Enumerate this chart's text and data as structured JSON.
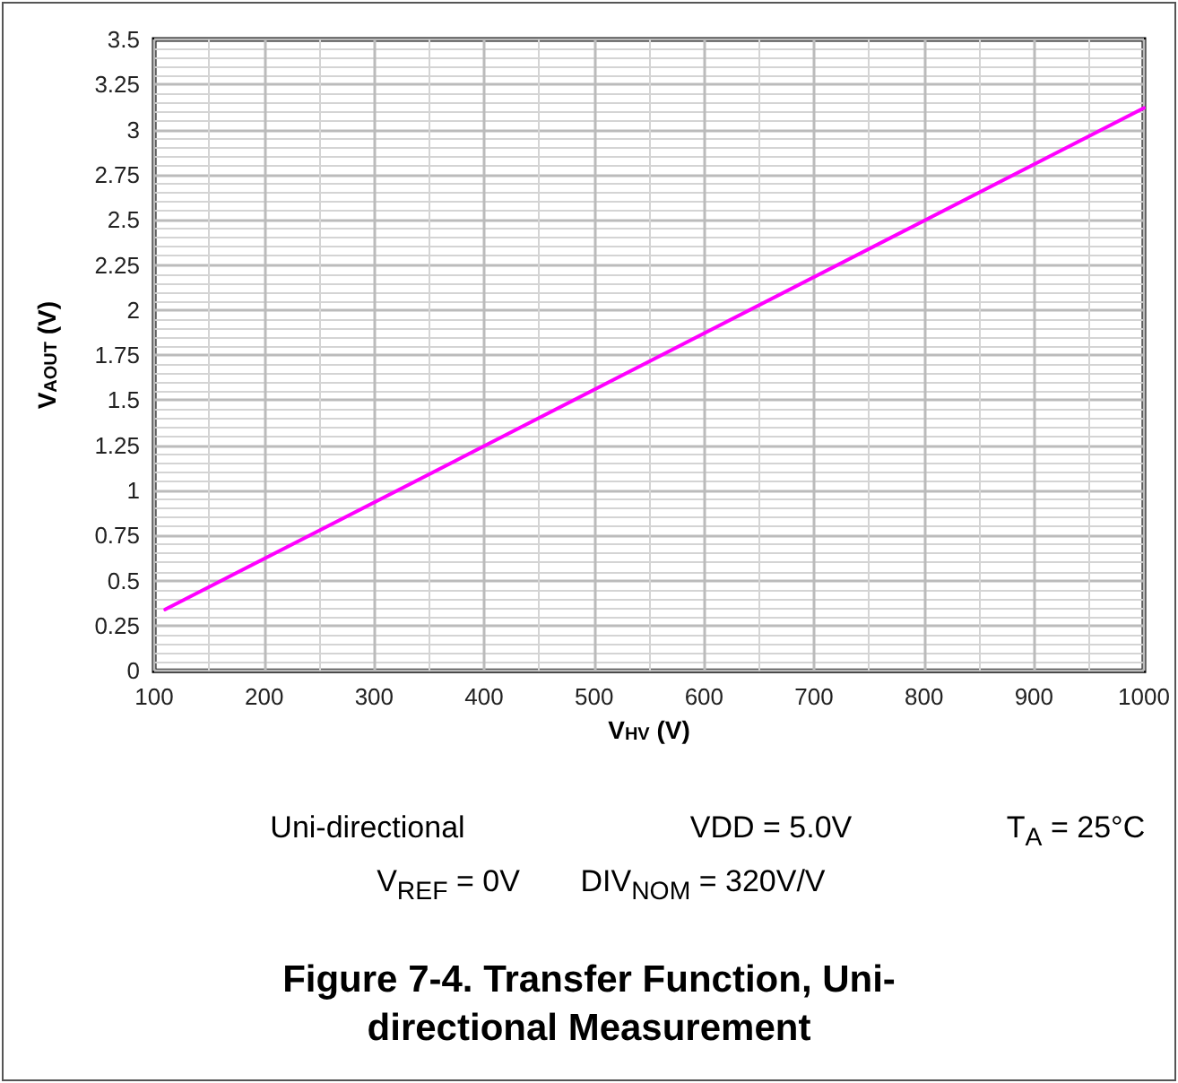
{
  "chart_data": {
    "type": "line",
    "title": "Figure 7-4. Transfer Function, Uni-directional Measurement",
    "xlabel": "V$_{HV}$ (V)",
    "ylabel": "V$_{AOUT}$ (V)",
    "x": [
      110,
      1000
    ],
    "series": [
      {
        "color": "#ff00ff",
        "values": [
          0.34,
          3.12
        ]
      }
    ],
    "xlim": [
      100,
      1000
    ],
    "xticks": [
      100,
      200,
      300,
      400,
      500,
      600,
      700,
      800,
      900,
      1000
    ],
    "ylim": [
      0,
      3.5
    ],
    "yticks": [
      0,
      0.25,
      0.5,
      0.75,
      1,
      1.25,
      1.5,
      1.75,
      2,
      2.25,
      2.5,
      2.75,
      3,
      3.25,
      3.5
    ],
    "grid": true,
    "marker": "none",
    "line_style": "solid",
    "annotations": [
      "Uni-directional",
      "VDD = 5.0V",
      "T$_{A}$ = 25°C",
      "V$_{REF}$ = 0V",
      "DIV$_{NOM}$ = 320V/V"
    ]
  }
}
